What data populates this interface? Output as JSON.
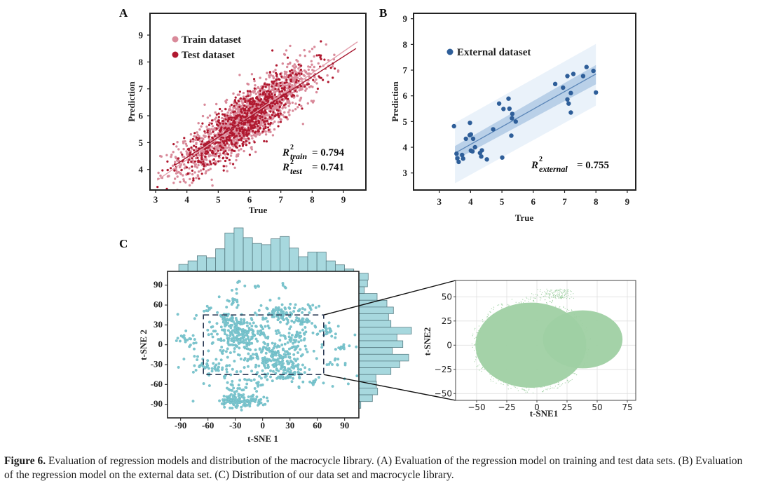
{
  "caption": {
    "figure_label": "Figure 6.",
    "text": " Evaluation of regression models and distribution of the macrocycle library. (A) Evaluation of the regression model on training and test data sets. (B) Evaluation of the regression model on the external data set. (C) Distribution of our data set and macrocycle library."
  },
  "chart_data": [
    {
      "panel": "A",
      "type": "scatter",
      "xlabel": "True",
      "ylabel": "Prediction",
      "xlim": [
        2.8,
        9.7
      ],
      "ylim": [
        3.25,
        9.8
      ],
      "xticks": [
        3,
        4,
        5,
        6,
        7,
        8,
        9
      ],
      "yticks": [
        4,
        5,
        6,
        7,
        8,
        9
      ],
      "legend": {
        "position": "top-left",
        "entries": [
          "Train dataset",
          "Test dataset"
        ]
      },
      "series": [
        {
          "name": "Train dataset",
          "color": "#d98a9a",
          "approx_points": 3000,
          "distribution": "dense band along y≈x, x 3.0–9.5",
          "fit_line": {
            "x": [
              3.05,
              9.45
            ],
            "y": [
              3.6,
              8.75
            ]
          }
        },
        {
          "name": "Test dataset",
          "color": "#b0182f",
          "approx_points": 800,
          "distribution": "dense band along y≈x, x 3.6–9.4",
          "fit_line": {
            "x": [
              3.6,
              9.4
            ],
            "y": [
              4.15,
              8.5
            ]
          }
        }
      ],
      "annotations": [
        {
          "label": "R²_train",
          "value": "= 0.794",
          "position": "bottom-right"
        },
        {
          "label": "R²_test",
          "value": "= 0.741",
          "position": "bottom-right"
        }
      ]
    },
    {
      "panel": "B",
      "type": "scatter",
      "xlabel": "True",
      "ylabel": "Prediction",
      "xlim": [
        2.3,
        9.1
      ],
      "ylim": [
        2.35,
        9.1
      ],
      "xticks": [
        3,
        4,
        5,
        6,
        7,
        8,
        9
      ],
      "yticks": [
        3,
        4,
        5,
        6,
        7,
        8,
        9
      ],
      "legend": {
        "position": "top-left",
        "entries": [
          "External dataset"
        ]
      },
      "series": [
        {
          "name": "External dataset",
          "color": "#2e5e99",
          "points": [
            [
              3.47,
              4.82
            ],
            [
              3.55,
              3.75
            ],
            [
              3.58,
              3.57
            ],
            [
              3.62,
              3.43
            ],
            [
              3.73,
              3.7
            ],
            [
              3.76,
              3.56
            ],
            [
              3.85,
              4.33
            ],
            [
              3.97,
              4.47
            ],
            [
              3.98,
              4.95
            ],
            [
              4.01,
              4.5
            ],
            [
              4.01,
              3.87
            ],
            [
              4.06,
              3.84
            ],
            [
              4.08,
              4.33
            ],
            [
              4.14,
              4.0
            ],
            [
              4.3,
              3.78
            ],
            [
              4.34,
              3.64
            ],
            [
              4.36,
              3.88
            ],
            [
              4.52,
              3.53
            ],
            [
              4.72,
              4.7
            ],
            [
              4.91,
              5.7
            ],
            [
              5.01,
              3.6
            ],
            [
              5.05,
              5.49
            ],
            [
              5.21,
              5.89
            ],
            [
              5.24,
              5.5
            ],
            [
              5.3,
              4.45
            ],
            [
              5.32,
              5.13
            ],
            [
              5.33,
              5.3
            ],
            [
              5.44,
              5.0
            ],
            [
              6.7,
              6.46
            ],
            [
              6.95,
              6.32
            ],
            [
              7.09,
              6.77
            ],
            [
              7.09,
              5.86
            ],
            [
              7.13,
              5.7
            ],
            [
              7.2,
              6.11
            ],
            [
              7.2,
              5.35
            ],
            [
              7.28,
              6.85
            ],
            [
              7.59,
              6.77
            ],
            [
              7.7,
              7.12
            ],
            [
              7.92,
              6.97
            ],
            [
              8.0,
              6.13
            ]
          ]
        }
      ],
      "fit_line": {
        "x": [
          3.5,
          8.0
        ],
        "y": [
          3.77,
          6.85
        ]
      },
      "confidence_band": {
        "x": [
          3.5,
          8.0
        ],
        "lower": [
          3.5,
          6.45
        ],
        "upper": [
          4.05,
          7.2
        ]
      },
      "prediction_band": {
        "x": [
          3.5,
          8.0
        ],
        "lower": [
          2.6,
          5.62
        ],
        "upper": [
          4.95,
          8.02
        ]
      },
      "annotations": [
        {
          "label": "R²_external",
          "value": "= 0.755",
          "position": "bottom-right"
        }
      ]
    },
    {
      "panel": "C-left",
      "type": "scatter",
      "xlabel": "t-SNE 1",
      "ylabel": "t-SNE 2",
      "xlim": [
        -105,
        105
      ],
      "ylim": [
        -113,
        108
      ],
      "xticks": [
        -90,
        -60,
        -30,
        0,
        30,
        60,
        90
      ],
      "yticks": [
        90,
        60,
        30,
        0,
        -30,
        -60,
        -90
      ],
      "color": "#7cc6cf",
      "zoom_box": {
        "x": [
          -65,
          67
        ],
        "y": [
          -45,
          45
        ]
      },
      "top_histogram": {
        "bins": 19,
        "x_range": [
          -92,
          100
        ],
        "relative_counts": [
          30,
          45,
          67,
          58,
          97,
          165,
          187,
          145,
          120,
          115,
          140,
          150,
          100,
          63,
          83,
          83,
          45,
          28,
          10
        ]
      },
      "right_histogram": {
        "bins": 20,
        "y_range": [
          108,
          -96
        ],
        "relative_counts": [
          40,
          37,
          23,
          78,
          120,
          148,
          127,
          137,
          225,
          163,
          188,
          143,
          213,
          175,
          137,
          73,
          75,
          80,
          58,
          8
        ]
      }
    },
    {
      "panel": "C-right",
      "type": "scatter",
      "xlabel": "t-SNE1",
      "ylabel": "t-SNE2",
      "xlim": [
        -69,
        81
      ],
      "ylim": [
        -57,
        67
      ],
      "xticks": [
        -50,
        -25,
        0,
        25,
        50,
        75
      ],
      "yticks": [
        50,
        25,
        0,
        -25,
        -50
      ],
      "grid": true,
      "color": "#9fd0a3",
      "distribution": "dense cloud: large lobe centered ~(-5,0) radius ~45, second lobe centered ~(40,5) radius ~30"
    }
  ],
  "panels": {
    "a": {
      "label": "A",
      "xlabel": "True",
      "ylabel": "Prediction",
      "legend_train": "Train dataset",
      "legend_test": "Test dataset",
      "r_train_sub": "train",
      "r_test_sub": "test",
      "r_train_val": "= 0.794",
      "r_test_val": "= 0.741"
    },
    "b": {
      "label": "B",
      "xlabel": "True",
      "ylabel": "Prediction",
      "legend": "External dataset",
      "r_sub": "external",
      "r_val": "= 0.755"
    },
    "c": {
      "label": "C",
      "xlabel": "t-SNE 1",
      "ylabel": "t-SNE 2",
      "xlabel2": "t-SNE1",
      "ylabel2": "t-SNE2"
    }
  },
  "colors": {
    "train": "#d98a9a",
    "test": "#b0182f",
    "external": "#2e5e99",
    "tsne": "#7cc6cf",
    "hist_fill": "#a7d8de",
    "library": "#9fd0a3"
  }
}
